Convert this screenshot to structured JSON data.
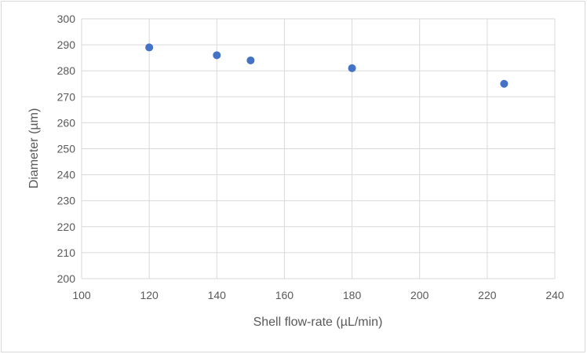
{
  "chart_data": {
    "type": "scatter",
    "title": "",
    "xlabel": "Shell flow-rate (µL/min)",
    "ylabel": "Diameter (µm)",
    "xlim": [
      100,
      240
    ],
    "ylim": [
      200,
      300
    ],
    "xticks": [
      100,
      120,
      140,
      160,
      180,
      200,
      220,
      240
    ],
    "yticks": [
      200,
      210,
      220,
      230,
      240,
      250,
      260,
      270,
      280,
      290,
      300
    ],
    "grid": true,
    "legend": "none",
    "series": [
      {
        "color": "#4472C4",
        "points": [
          {
            "x": 120,
            "y": 289
          },
          {
            "x": 140,
            "y": 286
          },
          {
            "x": 150,
            "y": 284
          },
          {
            "x": 180,
            "y": 281
          },
          {
            "x": 225,
            "y": 275
          }
        ]
      }
    ]
  }
}
